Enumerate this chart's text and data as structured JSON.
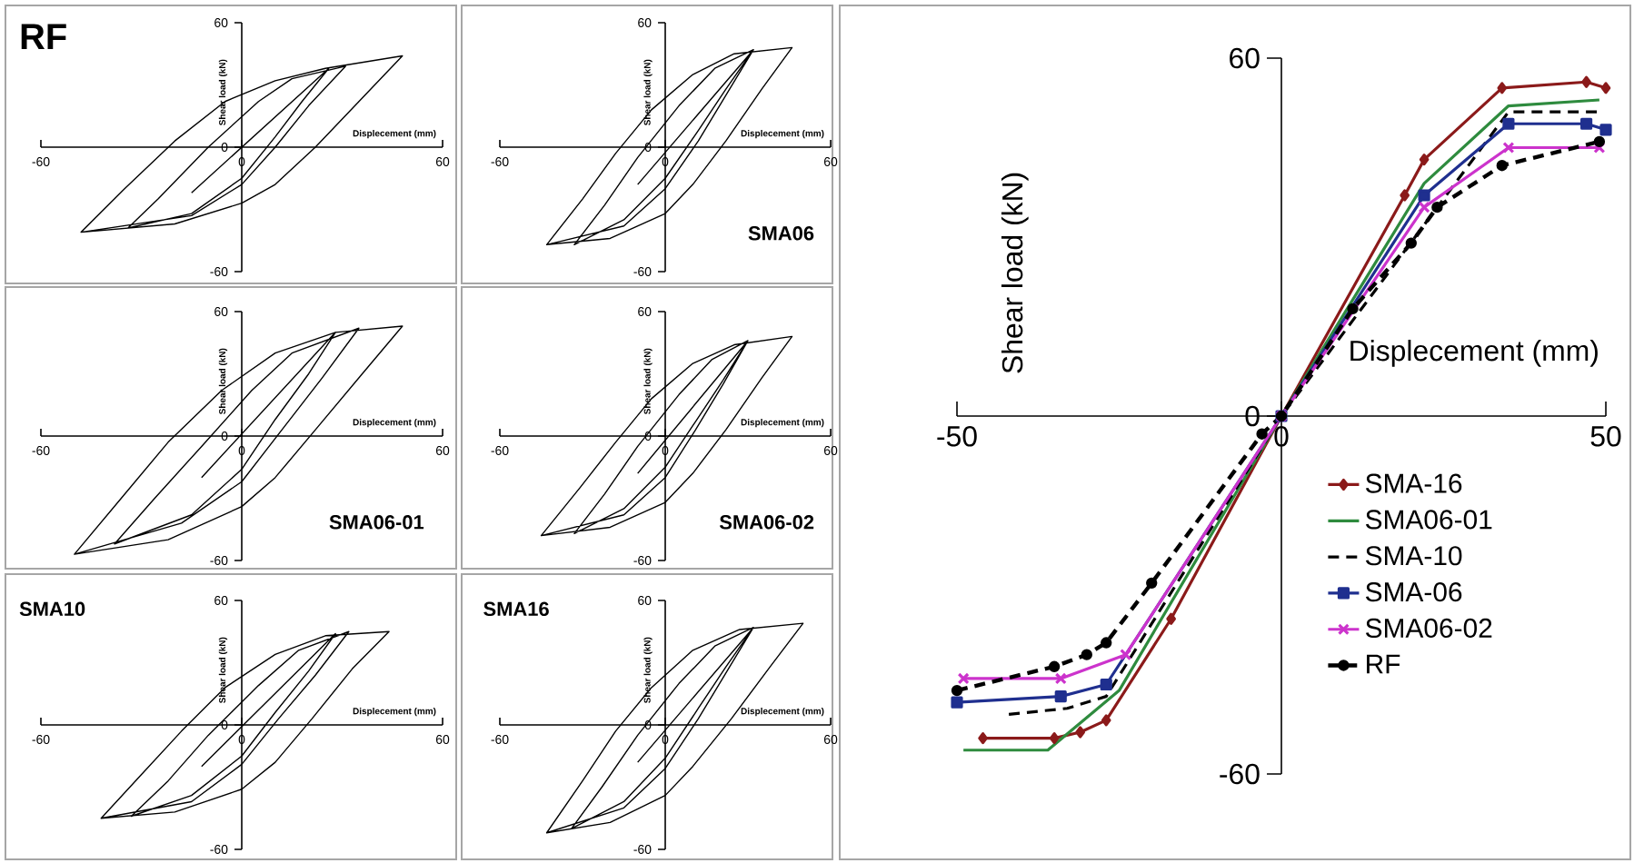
{
  "chart_data": [
    {
      "type": "line",
      "title": "RF",
      "xlabel": "Displecement (mm)",
      "ylabel": "Shear load  (kN)",
      "xlim": [
        -60,
        60
      ],
      "ylim": [
        -60,
        60
      ],
      "xticks": [
        -60,
        0,
        60
      ],
      "yticks": [
        -60,
        0,
        60
      ],
      "series": [
        {
          "color": "#000000",
          "x": [
            -15,
            26,
            18,
            10,
            0,
            -15,
            -34,
            -25,
            -10,
            5,
            15,
            31,
            20,
            10,
            0,
            -15,
            -48,
            -35,
            -20,
            -5,
            10,
            25,
            48,
            35,
            22,
            10,
            0,
            -20,
            -48
          ],
          "values": [
            -22,
            38,
            22,
            5,
            -15,
            -32,
            -39,
            -25,
            0,
            22,
            33,
            39,
            20,
            0,
            -18,
            -33,
            -41,
            -20,
            3,
            22,
            32,
            38,
            44,
            22,
            0,
            -18,
            -27,
            -37,
            -41
          ]
        }
      ]
    },
    {
      "type": "line",
      "title": "SMA06",
      "xlabel": "Displecement (mm)",
      "ylabel": "Shear load  (kN)",
      "xlim": [
        -60,
        60
      ],
      "ylim": [
        -60,
        60
      ],
      "xticks": [
        -60,
        0,
        60
      ],
      "yticks": [
        -60,
        0,
        60
      ],
      "series": [
        {
          "color": "#000000",
          "x": [
            -10,
            32,
            22,
            12,
            0,
            -15,
            -33,
            -22,
            -10,
            5,
            18,
            32,
            22,
            12,
            0,
            -15,
            -43,
            -30,
            -18,
            -5,
            10,
            25,
            46,
            35,
            22,
            10,
            0,
            -20,
            -43
          ],
          "values": [
            -18,
            47,
            28,
            8,
            -15,
            -35,
            -47,
            -28,
            -5,
            20,
            38,
            47,
            25,
            3,
            -20,
            -38,
            -47,
            -25,
            -3,
            18,
            35,
            45,
            48,
            28,
            3,
            -18,
            -32,
            -44,
            -47
          ]
        }
      ]
    },
    {
      "type": "line",
      "title": "SMA06-01",
      "xlabel": "Displecement (mm)",
      "ylabel": "Shear load  (kN)",
      "xlim": [
        -60,
        60
      ],
      "ylim": [
        -60,
        60
      ],
      "xticks": [
        -60,
        0,
        60
      ],
      "yticks": [
        -60,
        0,
        60
      ],
      "series": [
        {
          "color": "#000000",
          "x": [
            -12,
            28,
            20,
            10,
            0,
            -15,
            -38,
            -26,
            -12,
            3,
            15,
            35,
            24,
            12,
            0,
            -18,
            -50,
            -36,
            -22,
            -6,
            10,
            28,
            48,
            36,
            22,
            10,
            0,
            -22,
            -50
          ],
          "values": [
            -20,
            50,
            30,
            8,
            -16,
            -38,
            -52,
            -30,
            -5,
            22,
            40,
            52,
            28,
            3,
            -22,
            -42,
            -57,
            -30,
            -3,
            22,
            40,
            50,
            53,
            30,
            3,
            -20,
            -34,
            -50,
            -57
          ]
        }
      ]
    },
    {
      "type": "line",
      "title": "SMA06-02",
      "xlabel": "Displecement (mm)",
      "ylabel": "Shear load  (kN)",
      "xlim": [
        -60,
        60
      ],
      "ylim": [
        -60,
        60
      ],
      "xticks": [
        -60,
        0,
        60
      ],
      "yticks": [
        -60,
        0,
        60
      ],
      "series": [
        {
          "color": "#000000",
          "x": [
            -10,
            30,
            21,
            11,
            0,
            -15,
            -33,
            -22,
            -10,
            5,
            17,
            30,
            21,
            11,
            0,
            -15,
            -45,
            -31,
            -18,
            -5,
            10,
            25,
            46,
            35,
            22,
            10,
            0,
            -20,
            -45
          ],
          "values": [
            -18,
            46,
            27,
            7,
            -15,
            -35,
            -47,
            -28,
            -5,
            20,
            37,
            46,
            25,
            3,
            -20,
            -38,
            -48,
            -25,
            -3,
            18,
            35,
            44,
            48,
            28,
            3,
            -18,
            -32,
            -44,
            -48
          ]
        }
      ]
    },
    {
      "type": "line",
      "title": "SMA10",
      "xlabel": "Displecement (mm)",
      "ylabel": "Shear load  (kN)",
      "xlim": [
        -60,
        60
      ],
      "ylim": [
        -60,
        60
      ],
      "xticks": [
        -60,
        0,
        60
      ],
      "yticks": [
        -60,
        0,
        60
      ],
      "series": [
        {
          "color": "#000000",
          "x": [
            -12,
            28,
            20,
            10,
            0,
            -15,
            -33,
            -22,
            -10,
            5,
            17,
            32,
            22,
            11,
            0,
            -15,
            -42,
            -30,
            -18,
            -5,
            10,
            25,
            44,
            33,
            21,
            10,
            0,
            -20,
            -42
          ],
          "values": [
            -20,
            44,
            26,
            6,
            -15,
            -34,
            -44,
            -27,
            -5,
            19,
            36,
            45,
            24,
            3,
            -19,
            -37,
            -45,
            -24,
            -3,
            18,
            34,
            43,
            45,
            27,
            3,
            -18,
            -31,
            -42,
            -45
          ]
        }
      ]
    },
    {
      "type": "line",
      "title": "SMA16",
      "xlabel": "Displecement (mm)",
      "ylabel": "Shear load  (kN)",
      "xlim": [
        -60,
        60
      ],
      "ylim": [
        -60,
        60
      ],
      "xticks": [
        -60,
        0,
        60
      ],
      "yticks": [
        -60,
        0,
        60
      ],
      "series": [
        {
          "color": "#000000",
          "x": [
            -10,
            32,
            22,
            12,
            0,
            -15,
            -34,
            -23,
            -10,
            5,
            18,
            32,
            22,
            12,
            0,
            -15,
            -43,
            -30,
            -18,
            -5,
            10,
            27,
            50,
            38,
            24,
            10,
            0,
            -20,
            -43
          ],
          "values": [
            -18,
            47,
            28,
            8,
            -16,
            -37,
            -50,
            -30,
            -5,
            20,
            38,
            47,
            25,
            3,
            -21,
            -40,
            -52,
            -27,
            -3,
            18,
            36,
            46,
            49,
            28,
            3,
            -20,
            -34,
            -47,
            -52
          ]
        }
      ]
    },
    {
      "type": "line",
      "xlabel": "Displecement (mm)",
      "ylabel": "Shear load  (kN)",
      "xlim": [
        -50,
        50
      ],
      "ylim": [
        -60,
        60
      ],
      "xticks": [
        -50,
        0,
        50
      ],
      "yticks": [
        -60,
        0,
        60
      ],
      "legend": "bottom right",
      "series": [
        {
          "name": "SMA-16",
          "color": "#8b1a1a",
          "marker": "diamond",
          "line_style": "solid",
          "x": [
            -46,
            -35,
            -31,
            -27,
            -17,
            0,
            19,
            22,
            34,
            47,
            50
          ],
          "values": [
            -54,
            -54,
            -53,
            -51,
            -34,
            0,
            37,
            43,
            55,
            56,
            55
          ]
        },
        {
          "name": "SMA06-01",
          "color": "#2e8b3e",
          "marker": "none",
          "line_style": "solid",
          "x": [
            -49,
            -36,
            -25,
            0,
            22,
            35,
            49
          ],
          "values": [
            -56,
            -56,
            -46,
            0,
            39,
            52,
            53
          ]
        },
        {
          "name": "SMA-10",
          "color": "#000000",
          "marker": "none",
          "line_style": "dashed",
          "x": [
            -42,
            -33,
            -27,
            0,
            35,
            49
          ],
          "values": [
            -50,
            -49,
            -47,
            0,
            51,
            51
          ]
        },
        {
          "name": "SMA-06",
          "color": "#1f2f8f",
          "marker": "square",
          "line_style": "solid",
          "x": [
            -50,
            -34,
            -27,
            0,
            22,
            35,
            47,
            50
          ],
          "values": [
            -48,
            -47,
            -45,
            0,
            37,
            49,
            49,
            48
          ]
        },
        {
          "name": "SMA06-02",
          "color": "#cc33cc",
          "marker": "cross",
          "line_style": "solid",
          "x": [
            -49,
            -34,
            -24,
            0,
            22,
            35,
            49
          ],
          "values": [
            -44,
            -44,
            -40,
            0,
            35,
            45,
            45
          ]
        },
        {
          "name": "RF",
          "color": "#000000",
          "marker": "circle",
          "line_style": "dashed",
          "x": [
            -50,
            -35,
            -30,
            -27,
            -20,
            -3,
            0,
            11,
            20,
            24,
            34,
            49
          ],
          "values": [
            -46,
            -42,
            -40,
            -38,
            -28,
            -3,
            0,
            18,
            29,
            35,
            42,
            46
          ]
        }
      ]
    }
  ]
}
